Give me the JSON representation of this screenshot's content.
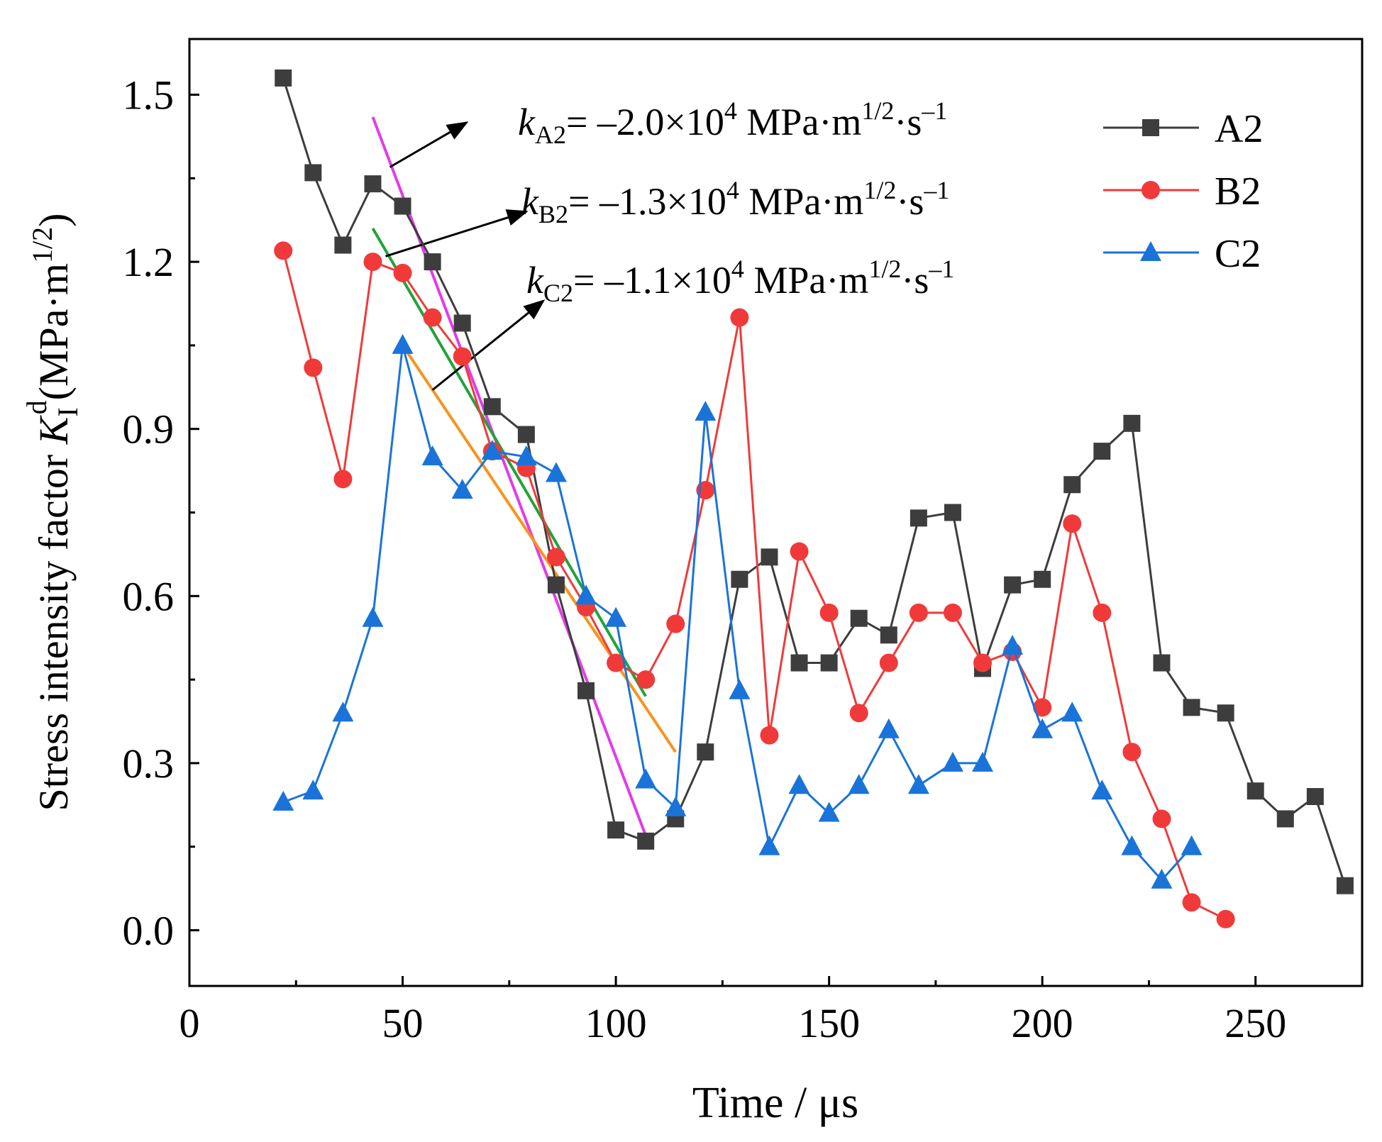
{
  "chart_data": {
    "type": "line",
    "xlabel": "Time / μs",
    "ylabel_main": "Stress intensity factor ",
    "ylabel_symbol": "K",
    "ylabel_sub": "I",
    "ylabel_sup": "d",
    "ylabel_unit_open": "(MPa·m",
    "ylabel_unit_exp": "1/2",
    "ylabel_unit_close": ")",
    "xlim": [
      0,
      275
    ],
    "ylim": [
      -0.1,
      1.6
    ],
    "xticks": [
      0,
      50,
      100,
      150,
      200,
      250
    ],
    "yticks": [
      0.0,
      0.3,
      0.6,
      0.9,
      1.2,
      1.5
    ],
    "ytick_labels": [
      "0.0",
      "0.3",
      "0.6",
      "0.9",
      "1.2",
      "1.5"
    ],
    "legend_position": "top-right",
    "series": [
      {
        "name": "A2",
        "color": "#3d3d3d",
        "marker": "square",
        "points": [
          [
            22,
            1.53
          ],
          [
            29,
            1.36
          ],
          [
            36,
            1.23
          ],
          [
            43,
            1.34
          ],
          [
            50,
            1.3
          ],
          [
            57,
            1.2
          ],
          [
            64,
            1.09
          ],
          [
            71,
            0.94
          ],
          [
            79,
            0.89
          ],
          [
            86,
            0.62
          ],
          [
            93,
            0.43
          ],
          [
            100,
            0.18
          ],
          [
            107,
            0.16
          ],
          [
            114,
            0.2
          ],
          [
            121,
            0.32
          ],
          [
            129,
            0.63
          ],
          [
            136,
            0.67
          ],
          [
            143,
            0.48
          ],
          [
            150,
            0.48
          ],
          [
            157,
            0.56
          ],
          [
            164,
            0.53
          ],
          [
            171,
            0.74
          ],
          [
            179,
            0.75
          ],
          [
            186,
            0.47
          ],
          [
            193,
            0.62
          ],
          [
            200,
            0.63
          ],
          [
            207,
            0.8
          ],
          [
            214,
            0.86
          ],
          [
            221,
            0.91
          ],
          [
            228,
            0.48
          ],
          [
            235,
            0.4
          ],
          [
            243,
            0.39
          ],
          [
            250,
            0.25
          ],
          [
            257,
            0.2
          ],
          [
            264,
            0.24
          ],
          [
            271,
            0.08
          ]
        ]
      },
      {
        "name": "B2",
        "color": "#f03a3a",
        "marker": "circle",
        "points": [
          [
            22,
            1.22
          ],
          [
            29,
            1.01
          ],
          [
            36,
            0.81
          ],
          [
            43,
            1.2
          ],
          [
            50,
            1.18
          ],
          [
            57,
            1.1
          ],
          [
            64,
            1.03
          ],
          [
            71,
            0.86
          ],
          [
            79,
            0.83
          ],
          [
            86,
            0.67
          ],
          [
            93,
            0.58
          ],
          [
            100,
            0.48
          ],
          [
            107,
            0.45
          ],
          [
            114,
            0.55
          ],
          [
            121,
            0.79
          ],
          [
            129,
            1.1
          ],
          [
            136,
            0.35
          ],
          [
            143,
            0.68
          ],
          [
            150,
            0.57
          ],
          [
            157,
            0.39
          ],
          [
            164,
            0.48
          ],
          [
            171,
            0.57
          ],
          [
            179,
            0.57
          ],
          [
            186,
            0.48
          ],
          [
            193,
            0.5
          ],
          [
            200,
            0.4
          ],
          [
            207,
            0.73
          ],
          [
            214,
            0.57
          ],
          [
            221,
            0.32
          ],
          [
            228,
            0.2
          ],
          [
            235,
            0.05
          ],
          [
            243,
            0.02
          ]
        ]
      },
      {
        "name": "C2",
        "color": "#1a73d9",
        "marker": "triangle",
        "points": [
          [
            22,
            0.23
          ],
          [
            29,
            0.25
          ],
          [
            36,
            0.39
          ],
          [
            43,
            0.56
          ],
          [
            50,
            1.05
          ],
          [
            57,
            0.85
          ],
          [
            64,
            0.79
          ],
          [
            71,
            0.86
          ],
          [
            79,
            0.85
          ],
          [
            86,
            0.82
          ],
          [
            93,
            0.6
          ],
          [
            100,
            0.56
          ],
          [
            107,
            0.27
          ],
          [
            114,
            0.22
          ],
          [
            121,
            0.93
          ],
          [
            129,
            0.43
          ],
          [
            136,
            0.15
          ],
          [
            143,
            0.26
          ],
          [
            150,
            0.21
          ],
          [
            157,
            0.26
          ],
          [
            164,
            0.36
          ],
          [
            171,
            0.26
          ],
          [
            179,
            0.3
          ],
          [
            186,
            0.3
          ],
          [
            193,
            0.51
          ],
          [
            200,
            0.36
          ],
          [
            207,
            0.39
          ],
          [
            214,
            0.25
          ],
          [
            221,
            0.15
          ],
          [
            228,
            0.09
          ],
          [
            235,
            0.15
          ]
        ]
      }
    ],
    "fit_lines": [
      {
        "name": "fit-A2",
        "color": "#e23ce8",
        "from": [
          43,
          1.46
        ],
        "to": [
          107,
          0.17
        ]
      },
      {
        "name": "fit-B2",
        "color": "#23a23c",
        "from": [
          43,
          1.26
        ],
        "to": [
          107,
          0.42
        ]
      },
      {
        "name": "fit-C2",
        "color": "#f7941d",
        "from": [
          50,
          1.05
        ],
        "to": [
          114,
          0.32
        ]
      }
    ],
    "annotations": [
      {
        "name": "A2",
        "sym": "k",
        "sub": "A2",
        "pre": "= –2.0×10",
        "sup1": "4",
        "mid": " MPa·m",
        "sup2": "1/2",
        "mid2": "·s",
        "sup3": "–1",
        "arrow_from": [
          47,
          1.37
        ],
        "arrow_to": [
          65,
          1.45
        ]
      },
      {
        "name": "B2",
        "sym": "k",
        "sub": "B2",
        "pre": "= –1.3×10",
        "sup1": "4",
        "mid": " MPa·m",
        "sup2": "1/2",
        "mid2": "·s",
        "sup3": "–1",
        "arrow_from": [
          46,
          1.21
        ],
        "arrow_to": [
          79,
          1.29
        ]
      },
      {
        "name": "C2",
        "sym": "k",
        "sub": "C2",
        "pre": "= –1.1×10",
        "sup1": "4",
        "mid": " MPa·m",
        "sup2": "1/2",
        "mid2": "·s",
        "sup3": "–1",
        "arrow_from": [
          57,
          0.97
        ],
        "arrow_to": [
          83,
          1.13
        ]
      }
    ]
  }
}
